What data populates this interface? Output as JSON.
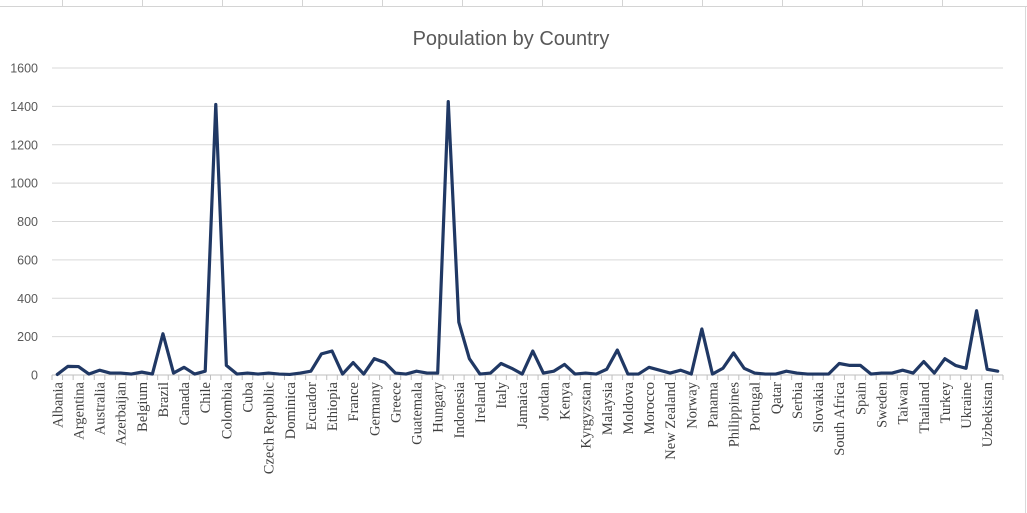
{
  "chart_data": {
    "type": "line",
    "title": "Population by Country",
    "xlabel": "",
    "ylabel": "",
    "ylim": [
      0,
      1600
    ],
    "yticks": [
      0,
      200,
      400,
      600,
      800,
      1000,
      1200,
      1400,
      1600
    ],
    "grid": true,
    "legend": "none",
    "line_color": "#203864",
    "categories": [
      "Albania",
      "",
      "Argentina",
      "",
      "Australia",
      "",
      "Azerbaijan",
      "",
      "Belgium",
      "",
      "Brazil",
      "",
      "Canada",
      "",
      "Chile",
      "",
      "Colombia",
      "",
      "Cuba",
      "",
      "Czech Republic",
      "",
      "Dominica",
      "",
      "Ecuador",
      "",
      "Ethiopia",
      "",
      "France",
      "",
      "Germany",
      "",
      "Greece",
      "",
      "Guatemala",
      "",
      "Hungary",
      "",
      "Indonesia",
      "",
      "Ireland",
      "",
      "Italy",
      "",
      "Jamaica",
      "",
      "Jordan",
      "",
      "Kenya",
      "",
      "Kyrgyzstan",
      "",
      "Malaysia",
      "",
      "Moldova",
      "",
      "Morocco",
      "",
      "New Zealand",
      "",
      "Norway",
      "",
      "Panama",
      "",
      "Philippines",
      "",
      "Portugal",
      "",
      "Qatar",
      "",
      "Serbia",
      "",
      "Slovakia",
      "",
      "South Africa",
      "",
      "Spain",
      "",
      "Sweden",
      "",
      "Taiwan",
      "",
      "Thailand",
      "",
      "Turkey",
      "",
      "Ukraine",
      "",
      "Uzbekistan",
      ""
    ],
    "values": [
      3,
      45,
      44,
      5,
      25,
      10,
      10,
      5,
      15,
      5,
      215,
      10,
      40,
      5,
      20,
      1410,
      50,
      5,
      10,
      5,
      10,
      5,
      3,
      10,
      20,
      110,
      125,
      5,
      65,
      5,
      85,
      65,
      10,
      5,
      20,
      10,
      10,
      1425,
      275,
      85,
      5,
      10,
      60,
      35,
      5,
      125,
      10,
      20,
      55,
      5,
      10,
      5,
      30,
      130,
      5,
      5,
      40,
      25,
      10,
      25,
      5,
      240,
      5,
      35,
      115,
      35,
      10,
      5,
      5,
      20,
      10,
      5,
      5,
      5,
      60,
      50,
      50,
      5,
      10,
      10,
      25,
      10,
      70,
      10,
      85,
      50,
      35,
      335,
      30,
      20
    ]
  }
}
